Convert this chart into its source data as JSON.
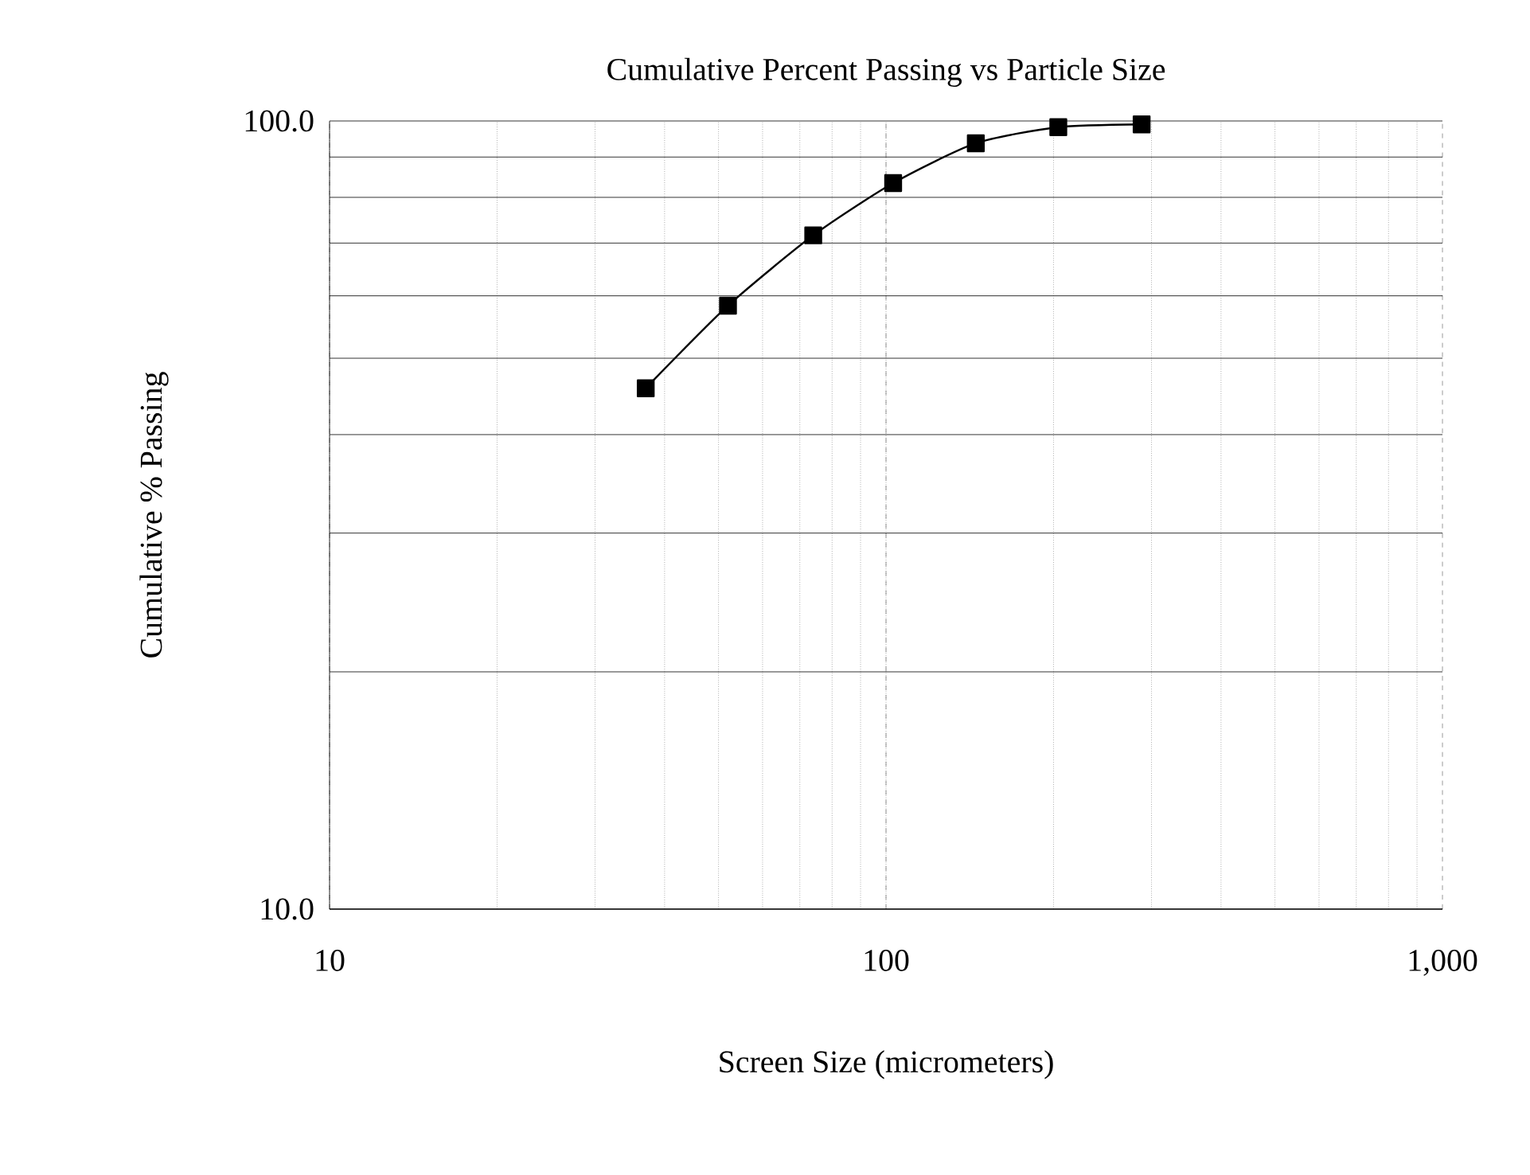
{
  "chart_data": {
    "type": "line",
    "title": "Cumulative Percent Passing vs Particle Size",
    "xlabel": "Screen Size (micrometers)",
    "ylabel": "Cumulative % Passing",
    "x": [
      37,
      52,
      74,
      103,
      145,
      204,
      288
    ],
    "series": [
      {
        "color": "#000000",
        "values": [
          45.8,
          58.3,
          71.6,
          83.4,
          93.7,
          98.2,
          99.0
        ]
      }
    ],
    "log": "xy",
    "xlim": [
      10,
      1000
    ],
    "ylim": [
      10,
      100
    ],
    "xticks": [
      10,
      100,
      {
        "value": 1000,
        "label": "1,000"
      }
    ],
    "yticks": [
      {
        "value": 10,
        "label": "10.0"
      },
      {
        "value": 100,
        "label": "100.0"
      }
    ],
    "grid": true,
    "marker": "square",
    "line_style": "solid"
  }
}
